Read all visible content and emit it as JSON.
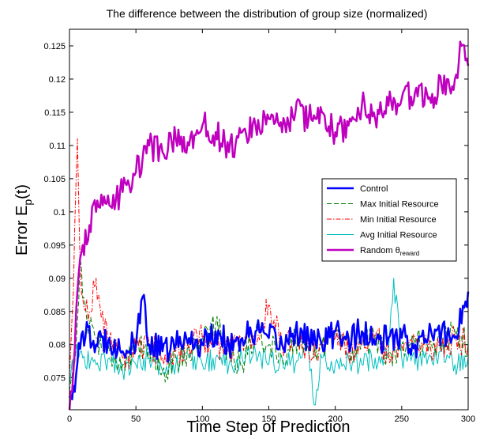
{
  "chart_data": {
    "type": "line",
    "title": "The difference between the distribution of group size (normalized)",
    "xlabel": "Time Step of Prediction",
    "ylabel_main": "Error E",
    "ylabel_sub": "p",
    "ylabel_tail": "(t)",
    "xlim": [
      0,
      300
    ],
    "ylim": [
      0.0702,
      0.1275
    ],
    "xticks": [
      0,
      50,
      100,
      150,
      200,
      250,
      300
    ],
    "yticks": [
      0.075,
      0.08,
      0.085,
      0.09,
      0.095,
      0.1,
      0.105,
      0.11,
      0.115,
      0.12,
      0.125
    ],
    "ytick_labels": [
      "0.075",
      "0.08",
      "0.085",
      "0.09",
      "0.095",
      "0.1",
      "0.105",
      "0.11",
      "0.115",
      "0.12",
      "0.125"
    ],
    "legend_position": "center-right",
    "series": [
      {
        "name": "Control",
        "color": "#0000ff",
        "dash": "solid",
        "width": 2.5,
        "x": [
          0,
          5,
          10,
          20,
          30,
          40,
          50,
          56,
          60,
          70,
          80,
          90,
          100,
          110,
          120,
          130,
          140,
          150,
          160,
          170,
          180,
          190,
          200,
          210,
          220,
          230,
          240,
          250,
          260,
          270,
          280,
          290,
          300
        ],
        "y": [
          0.072,
          0.0755,
          0.082,
          0.08,
          0.081,
          0.079,
          0.08,
          0.0875,
          0.08,
          0.079,
          0.08,
          0.081,
          0.08,
          0.082,
          0.08,
          0.081,
          0.082,
          0.081,
          0.08,
          0.082,
          0.081,
          0.08,
          0.082,
          0.081,
          0.082,
          0.08,
          0.081,
          0.081,
          0.08,
          0.081,
          0.082,
          0.081,
          0.088
        ]
      },
      {
        "name": "Max Initial Resource",
        "color": "#007f00",
        "dash": "dashed",
        "width": 1,
        "x": [
          0,
          5,
          8,
          10,
          15,
          20,
          30,
          40,
          50,
          60,
          70,
          80,
          90,
          100,
          110,
          120,
          130,
          140,
          150,
          160,
          170,
          180,
          190,
          200,
          210,
          220,
          230,
          240,
          250,
          260,
          270,
          280,
          290,
          300
        ],
        "y": [
          0.073,
          0.08,
          0.093,
          0.087,
          0.083,
          0.081,
          0.079,
          0.077,
          0.079,
          0.08,
          0.076,
          0.078,
          0.079,
          0.081,
          0.083,
          0.079,
          0.077,
          0.082,
          0.08,
          0.078,
          0.081,
          0.079,
          0.08,
          0.082,
          0.079,
          0.08,
          0.081,
          0.078,
          0.08,
          0.081,
          0.079,
          0.08,
          0.082,
          0.08
        ]
      },
      {
        "name": "Min Initial Resource",
        "color": "#ff0000",
        "dash": "dashdot",
        "width": 1,
        "x": [
          0,
          3,
          5,
          6,
          8,
          10,
          15,
          20,
          24,
          30,
          40,
          50,
          60,
          70,
          80,
          90,
          100,
          110,
          120,
          130,
          140,
          150,
          160,
          170,
          180,
          190,
          200,
          210,
          220,
          230,
          240,
          250,
          260,
          270,
          280,
          290,
          300
        ],
        "y": [
          0.075,
          0.088,
          0.105,
          0.111,
          0.092,
          0.087,
          0.085,
          0.09,
          0.084,
          0.081,
          0.078,
          0.079,
          0.08,
          0.078,
          0.079,
          0.08,
          0.081,
          0.08,
          0.079,
          0.081,
          0.08,
          0.086,
          0.08,
          0.081,
          0.079,
          0.08,
          0.081,
          0.079,
          0.08,
          0.081,
          0.079,
          0.08,
          0.081,
          0.08,
          0.079,
          0.081,
          0.08
        ]
      },
      {
        "name": "Avg Initial Resource",
        "color": "#00bfbf",
        "dash": "solid",
        "width": 1,
        "x": [
          0,
          5,
          10,
          20,
          30,
          40,
          50,
          60,
          70,
          80,
          90,
          100,
          110,
          120,
          130,
          140,
          150,
          160,
          170,
          180,
          184,
          190,
          200,
          210,
          220,
          230,
          240,
          244,
          250,
          260,
          270,
          280,
          290,
          300
        ],
        "y": [
          0.074,
          0.079,
          0.078,
          0.077,
          0.078,
          0.076,
          0.077,
          0.078,
          0.076,
          0.077,
          0.078,
          0.077,
          0.078,
          0.077,
          0.078,
          0.079,
          0.077,
          0.078,
          0.077,
          0.079,
          0.071,
          0.078,
          0.077,
          0.078,
          0.077,
          0.078,
          0.079,
          0.09,
          0.078,
          0.077,
          0.078,
          0.079,
          0.077,
          0.078
        ]
      },
      {
        "name": "Random θ",
        "name_subscript": "reward",
        "color": "#bf00bf",
        "dash": "solid",
        "width": 2.5,
        "x": [
          0,
          3,
          5,
          8,
          10,
          15,
          20,
          25,
          30,
          40,
          50,
          55,
          60,
          70,
          80,
          90,
          100,
          110,
          120,
          130,
          140,
          150,
          160,
          170,
          180,
          190,
          200,
          210,
          220,
          230,
          240,
          250,
          260,
          270,
          280,
          290,
          295,
          300
        ],
        "y": [
          0.07,
          0.076,
          0.085,
          0.093,
          0.095,
          0.098,
          0.1,
          0.101,
          0.101,
          0.103,
          0.106,
          0.108,
          0.11,
          0.109,
          0.111,
          0.11,
          0.113,
          0.112,
          0.109,
          0.112,
          0.113,
          0.114,
          0.112,
          0.115,
          0.114,
          0.115,
          0.112,
          0.113,
          0.116,
          0.114,
          0.116,
          0.117,
          0.118,
          0.117,
          0.119,
          0.12,
          0.125,
          0.122
        ]
      }
    ]
  }
}
